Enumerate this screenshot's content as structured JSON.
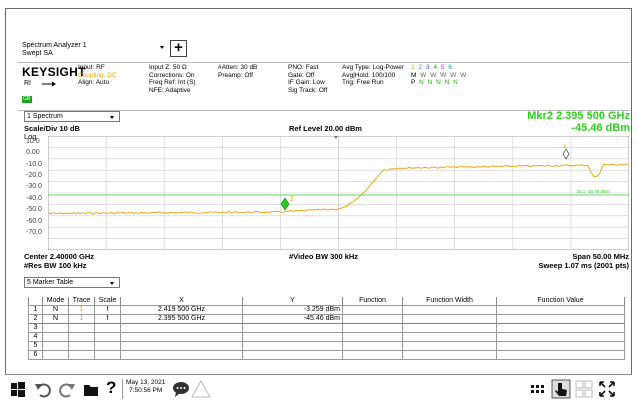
{
  "window": {
    "title_line1": "Spectrum Analyzer 1",
    "title_line2": "Swept SA",
    "plus_label": "+"
  },
  "params": {
    "brand": "KEYSIGHT",
    "ri": "RI",
    "col1": [
      "Input: RF",
      "Coupling: DC",
      "Align: Auto"
    ],
    "col2": [
      "Input Z: 50 Ω",
      "Corrections: On",
      "Freq Ref: Int (S)",
      "NFE: Adaptive"
    ],
    "col3": [
      "#Atten: 30 dB",
      "Preamp: Off"
    ],
    "col4": [
      "PNO: Fast",
      "Gate: Off",
      "IF Gain: Low",
      "Sig Track: Off"
    ],
    "col5": [
      "Avg Type: Log-Power",
      "Avg|Hold: 100/100",
      "Trig: Free Run"
    ],
    "trace_numbers": [
      "1",
      "2",
      "3",
      "4",
      "5",
      "6"
    ],
    "trace_types": [
      "M",
      "W",
      "W",
      "W",
      "W",
      "W"
    ],
    "trace_detectors": [
      "P",
      "N",
      "N",
      "N",
      "N",
      "N"
    ],
    "status_badge": "GB"
  },
  "spectrum": {
    "selector": "1 Spectrum",
    "marker_line1": "Mkr2  2.395 500 GHz",
    "marker_line2": "-45.46 dBm",
    "scale_div": "Scale/Div 10 dB",
    "scale_type": "Log",
    "ref_level": "Ref Level 20.00 dBm",
    "y_labels": [
      "10.0",
      "0.00",
      "-10.0",
      "-20.0",
      "-30.0",
      "-40.0",
      "-50.0",
      "-60.0",
      "-70.0"
    ],
    "dl_label": "DL1 -33.76 dBm",
    "marker1_label": "1",
    "marker2_label": "2",
    "center": "Center 2.40000 GHz",
    "res_bw": "#Res BW 100 kHz",
    "video_bw": "#Video BW 300 kHz",
    "span": "Span 50.00 MHz",
    "sweep": "Sweep 1.07 ms (2001 pts)"
  },
  "marker_table": {
    "selector": "5 Marker Table",
    "headers": [
      "",
      "Mode",
      "Trace",
      "Scale",
      "X",
      "Y",
      "Function",
      "Function Width",
      "Function Value"
    ],
    "rows": [
      [
        "1",
        "N",
        "1",
        "f",
        "2.419 500 GHz",
        "-3.259 dBm",
        "",
        "",
        ""
      ],
      [
        "2",
        "N",
        "1",
        "f",
        "2.395 500 GHz",
        "-45.46 dBm",
        "",
        "",
        ""
      ],
      [
        "3",
        "",
        "",
        "",
        "",
        "",
        "",
        "",
        ""
      ],
      [
        "4",
        "",
        "",
        "",
        "",
        "",
        "",
        "",
        ""
      ],
      [
        "5",
        "",
        "",
        "",
        "",
        "",
        "",
        "",
        ""
      ],
      [
        "6",
        "",
        "",
        "",
        "",
        "",
        "",
        "",
        ""
      ]
    ]
  },
  "taskbar": {
    "date": "May 13, 2021",
    "time": "7:50:56 PM",
    "help": "?"
  },
  "colors": {
    "trace": "#e8a000",
    "marker_green": "#2cd31c",
    "display_line": "#33cc33",
    "selection": "#2a9fd6"
  }
}
